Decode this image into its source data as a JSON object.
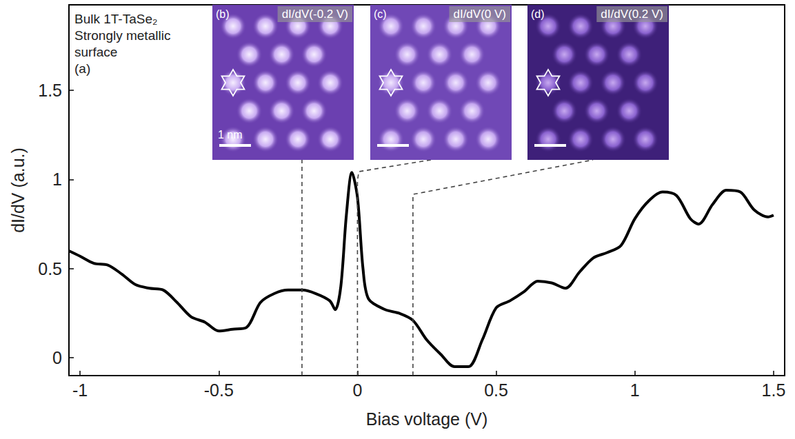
{
  "chart_data": {
    "type": "line",
    "x_label": "Bias voltage (V)",
    "y_label": "dI/dV (a.u.)",
    "annotation": [
      "Bulk 1T-TaSe₂",
      "Strongly metallic",
      "surface"
    ],
    "panel_label": "(a)",
    "color": "#000000",
    "grid": false,
    "xlim": [
      -1.04,
      1.54
    ],
    "ylim": [
      -0.1,
      1.98
    ],
    "xticks": [
      -1,
      -0.5,
      0,
      0.5,
      1,
      1.5
    ],
    "yticks": [
      0,
      0.5,
      1,
      1.5
    ],
    "x": [
      -1.04,
      -1.0,
      -0.95,
      -0.9,
      -0.85,
      -0.8,
      -0.75,
      -0.7,
      -0.65,
      -0.6,
      -0.55,
      -0.5,
      -0.45,
      -0.4,
      -0.35,
      -0.3,
      -0.25,
      -0.2,
      -0.15,
      -0.1,
      -0.08,
      -0.06,
      -0.04,
      -0.02,
      0.0,
      0.02,
      0.04,
      0.1,
      0.15,
      0.2,
      0.25,
      0.3,
      0.35,
      0.4,
      0.45,
      0.5,
      0.55,
      0.6,
      0.65,
      0.7,
      0.75,
      0.8,
      0.85,
      0.9,
      0.95,
      1.0,
      1.05,
      1.1,
      1.15,
      1.2,
      1.23,
      1.28,
      1.33,
      1.38,
      1.43,
      1.48,
      1.5
    ],
    "values": [
      0.6,
      0.57,
      0.53,
      0.52,
      0.47,
      0.41,
      0.39,
      0.38,
      0.31,
      0.23,
      0.2,
      0.15,
      0.16,
      0.17,
      0.31,
      0.36,
      0.38,
      0.38,
      0.36,
      0.32,
      0.27,
      0.4,
      0.8,
      1.04,
      0.9,
      0.5,
      0.33,
      0.27,
      0.25,
      0.21,
      0.1,
      0.02,
      -0.05,
      -0.05,
      0.1,
      0.28,
      0.32,
      0.37,
      0.43,
      0.42,
      0.39,
      0.48,
      0.56,
      0.59,
      0.63,
      0.78,
      0.88,
      0.93,
      0.91,
      0.78,
      0.75,
      0.86,
      0.94,
      0.93,
      0.83,
      0.79,
      0.8
    ],
    "insets": [
      {
        "panel": "(b)",
        "label": "dI/dV(-0.2 V)",
        "bias": -0.2,
        "scale_bar": "1 nm"
      },
      {
        "panel": "(c)",
        "label": "dI/dV(0 V)",
        "bias": 0
      },
      {
        "panel": "(d)",
        "label": "dI/dV(0.2 V)",
        "bias": 0.2
      }
    ]
  }
}
